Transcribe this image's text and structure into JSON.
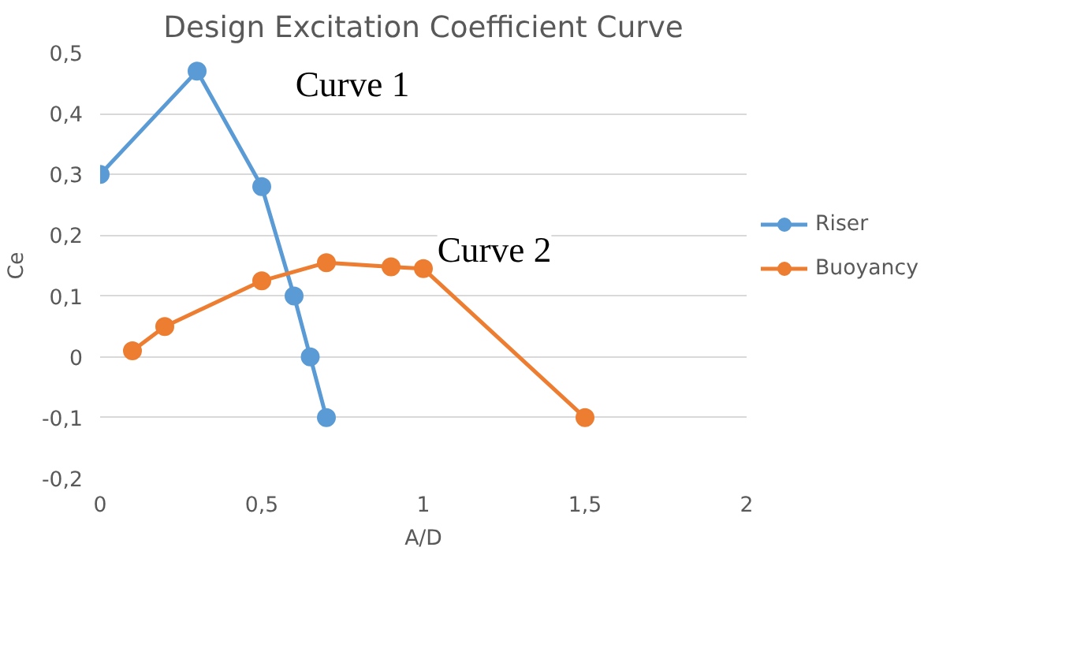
{
  "chart_data": {
    "type": "line",
    "title": "Design Excitation Coefficient Curve",
    "xlabel": "A/D",
    "ylabel": "Ce",
    "series": [
      {
        "name": "Riser",
        "color": "#5b9bd5",
        "x": [
          0,
          0.3,
          0.5,
          0.6,
          0.65,
          0.7
        ],
        "values": [
          0.3,
          0.47,
          0.28,
          0.1,
          0.0,
          -0.1
        ]
      },
      {
        "name": "Buoyancy",
        "color": "#ed7d31",
        "x": [
          0.1,
          0.2,
          0.5,
          0.7,
          0.9,
          1.0,
          1.5
        ],
        "values": [
          0.01,
          0.05,
          0.125,
          0.155,
          0.148,
          0.145,
          -0.1
        ]
      }
    ],
    "xlim": [
      0,
      2
    ],
    "ylim": [
      -0.2,
      0.5
    ],
    "xticks": [
      0,
      {
        "value": 0.5,
        "label": "0,5"
      },
      1,
      {
        "value": 1.5,
        "label": "1,5"
      },
      2
    ],
    "yticks": [
      {
        "value": -0.2,
        "label": "-0,2"
      },
      {
        "value": -0.1,
        "label": "-0,1"
      },
      0,
      {
        "value": 0.1,
        "label": "0,1"
      },
      {
        "value": 0.2,
        "label": "0,2"
      },
      {
        "value": 0.3,
        "label": "0,3"
      },
      {
        "value": 0.4,
        "label": "0,4"
      },
      {
        "value": 0.5,
        "label": "0,5"
      }
    ],
    "grid": "y",
    "legend": "right",
    "marker": "circle",
    "line_style": "solid",
    "annotations": [
      "Curve 1",
      "Curve 2"
    ]
  }
}
